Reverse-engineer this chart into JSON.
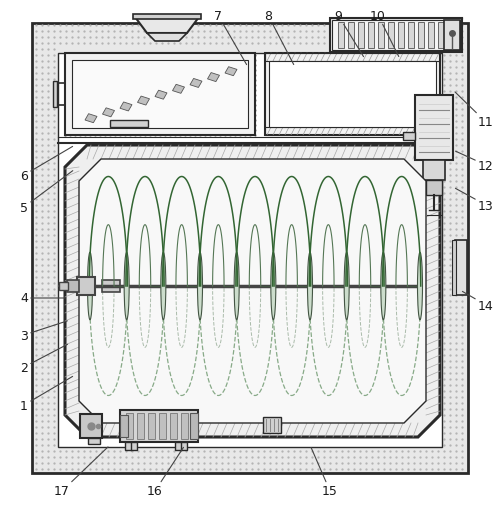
{
  "bg_color": "#ffffff",
  "line_color": "#2a2a2a",
  "wall_fill": "#e8e8e8",
  "inner_fill": "#f2f2f2",
  "hatch_fill": "#d5d5d5",
  "drum_fill": "#efefef",
  "label_color": "#1a1a1a",
  "figsize": [
    5.0,
    5.06
  ],
  "dpi": 100,
  "label_fontsize": 9,
  "labels_info": [
    [
      1,
      28,
      100,
      75,
      130
    ],
    [
      2,
      28,
      138,
      70,
      162
    ],
    [
      3,
      28,
      170,
      70,
      185
    ],
    [
      4,
      28,
      207,
      68,
      207
    ],
    [
      5,
      28,
      298,
      75,
      336
    ],
    [
      6,
      28,
      330,
      75,
      360
    ],
    [
      7,
      218,
      490,
      248,
      438
    ],
    [
      8,
      268,
      490,
      295,
      438
    ],
    [
      9,
      338,
      490,
      365,
      446
    ],
    [
      10,
      378,
      490,
      400,
      446
    ],
    [
      11,
      478,
      383,
      453,
      415
    ],
    [
      12,
      478,
      340,
      453,
      355
    ],
    [
      13,
      478,
      300,
      453,
      318
    ],
    [
      14,
      478,
      200,
      460,
      215
    ],
    [
      15,
      330,
      14,
      310,
      60
    ],
    [
      16,
      155,
      14,
      185,
      60
    ],
    [
      17,
      62,
      14,
      110,
      60
    ]
  ]
}
